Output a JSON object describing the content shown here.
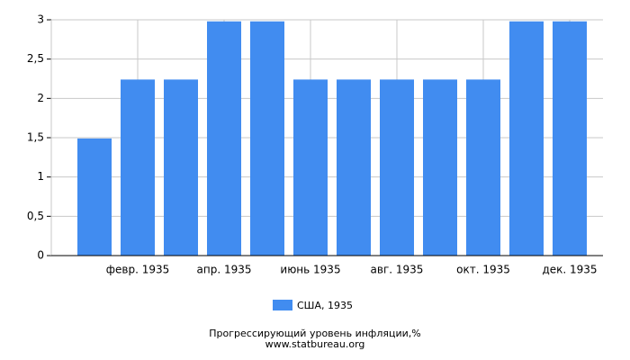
{
  "chart_data": {
    "type": "bar",
    "categories": [
      null,
      "февр. 1935",
      null,
      "апр. 1935",
      null,
      "июнь 1935",
      null,
      "авг. 1935",
      null,
      "окт. 1935",
      null,
      "дек. 1935"
    ],
    "series": [
      {
        "name": "США, 1935",
        "color": "#418cf0",
        "values": [
          1.49,
          2.24,
          2.24,
          2.98,
          2.98,
          2.24,
          2.24,
          2.24,
          2.24,
          2.24,
          2.98,
          2.98
        ]
      }
    ],
    "ylim": [
      0,
      3
    ],
    "yticks": [
      0,
      {
        "value": 0.5,
        "label": "0,5"
      },
      1,
      {
        "value": 1.5,
        "label": "1,5"
      },
      2,
      {
        "value": 2.5,
        "label": "2,5"
      },
      3
    ],
    "grid": true,
    "legend": "bottom",
    "caption": "Прогрессирующий уровень инфляции,%",
    "source": "www.statbureau.org"
  }
}
